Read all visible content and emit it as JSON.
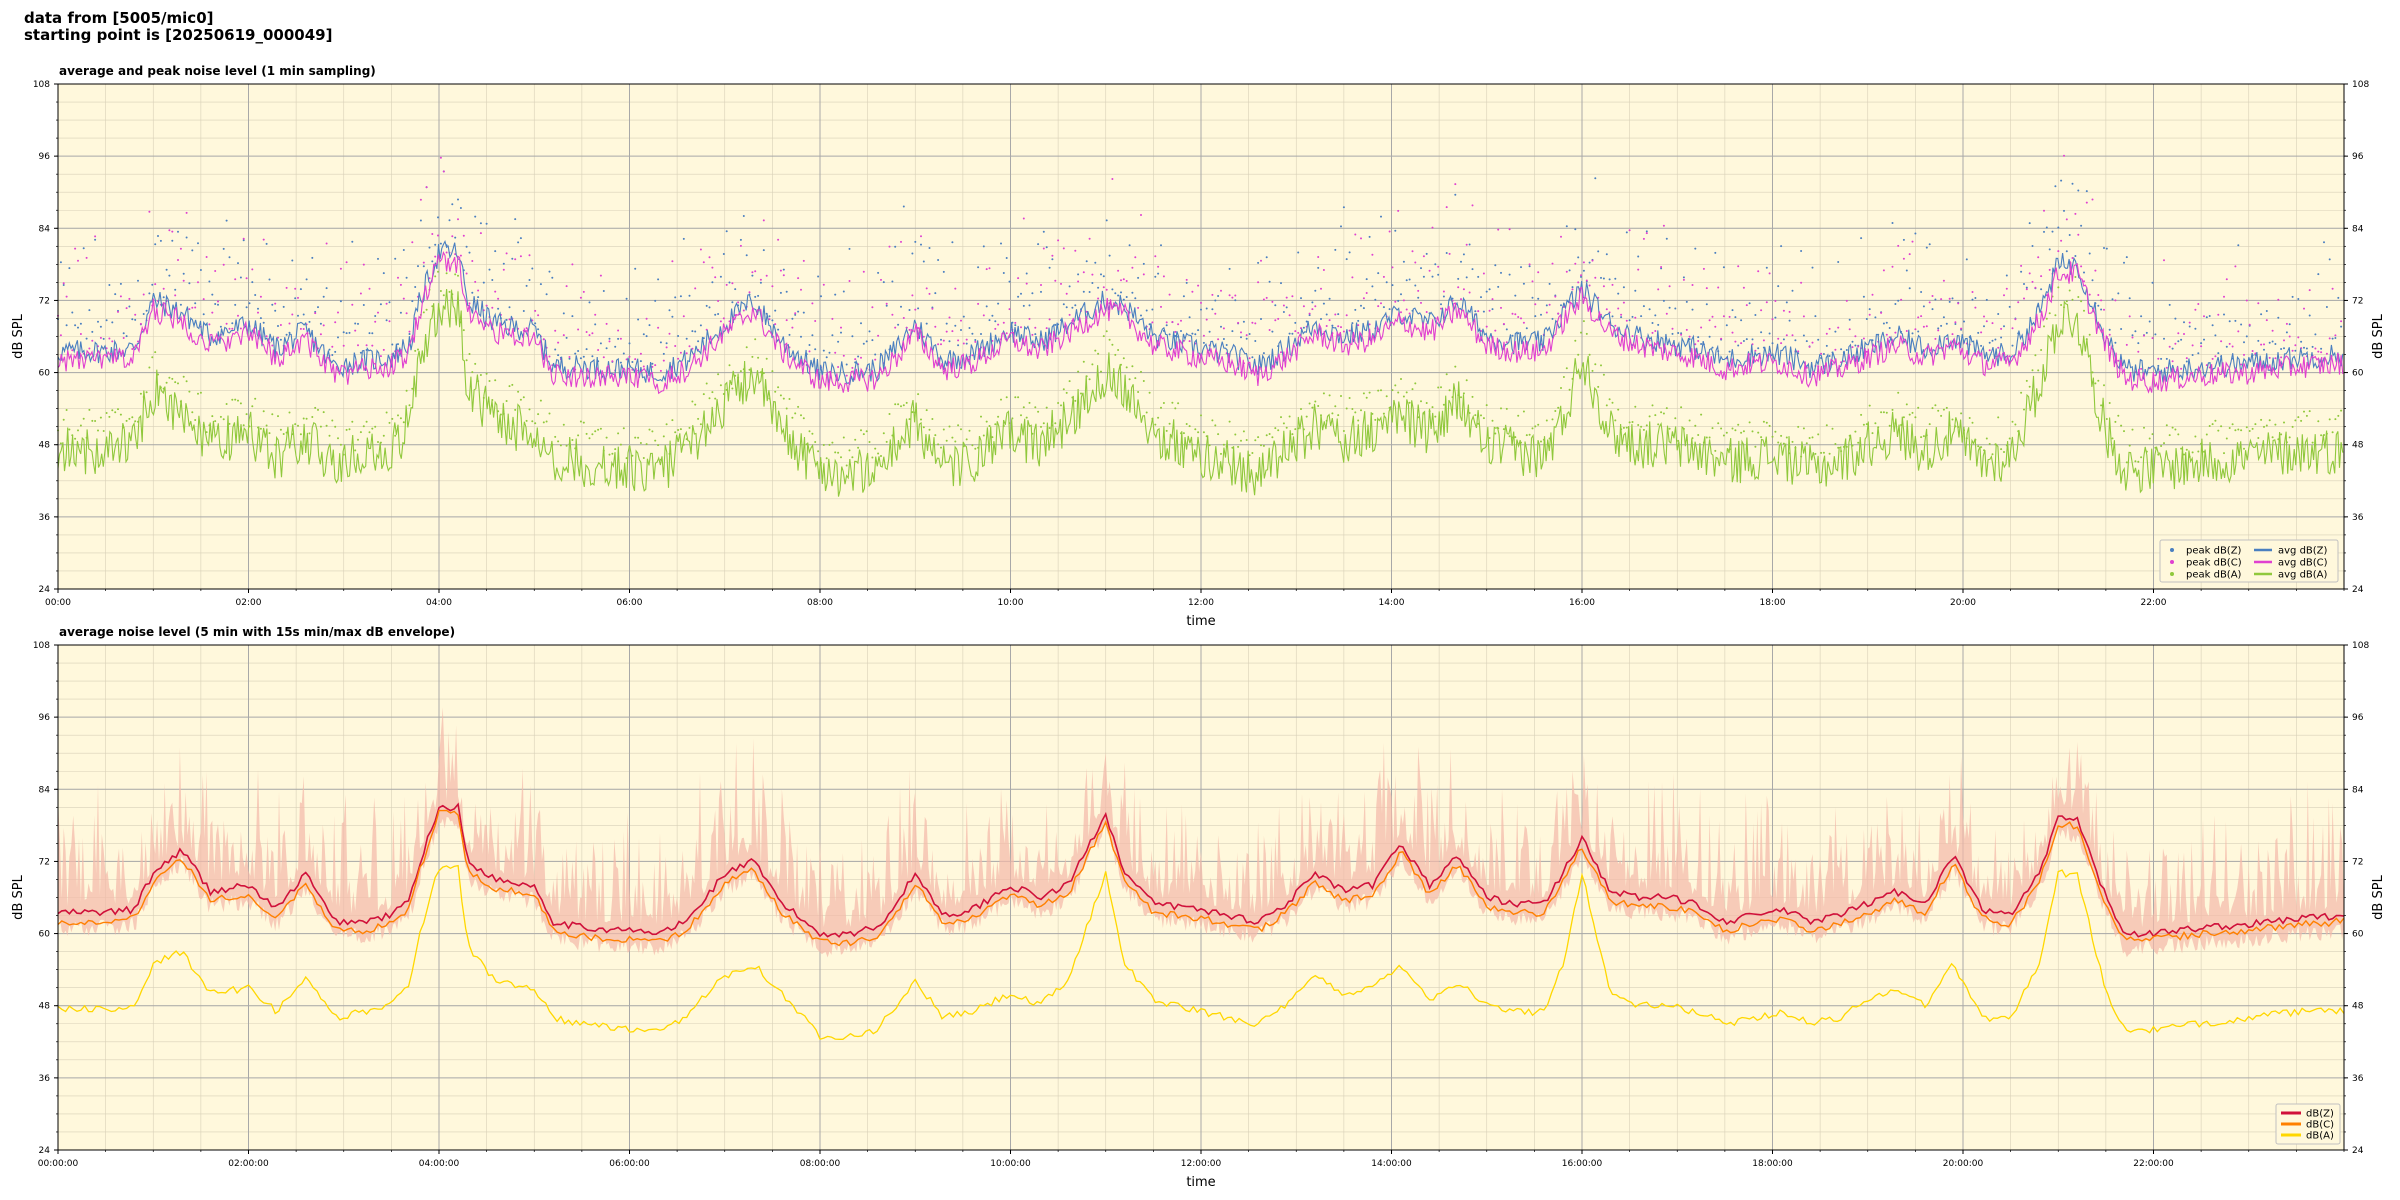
{
  "header": {
    "line1": "data from [5005/mic0]",
    "line2": "starting point is [20250619_000049]"
  },
  "colors": {
    "plot_bg": "#fff8dc",
    "z": "#4a7fc0",
    "c": "#e040d0",
    "a": "#90c83c",
    "b_z": "#d0103a",
    "b_c": "#ff8000",
    "b_a": "#ffd700",
    "envelope": "#f4b8a8"
  },
  "chart_data": [
    {
      "type": "line",
      "title": "average and peak noise level (1 min sampling)",
      "xlabel": "time",
      "ylabel": "dB SPL",
      "ylim": [
        24,
        108
      ],
      "yticks": [
        24,
        36,
        48,
        60,
        72,
        84,
        96,
        108
      ],
      "xlim_hours": [
        0,
        24
      ],
      "xtick_labels": [
        "00:00",
        "02:00",
        "04:00",
        "06:00",
        "08:00",
        "10:00",
        "12:00",
        "14:00",
        "16:00",
        "18:00",
        "20:00",
        "22:00"
      ],
      "grid": true,
      "legend_position": "bottom-right",
      "legend": [
        "peak dB(Z)",
        "peak dB(C)",
        "peak dB(A)",
        "avg dB(Z)",
        "avg dB(C)",
        "avg dB(A)"
      ],
      "x_hours": [
        0,
        0.5,
        0.8,
        1.0,
        1.3,
        1.6,
        2.0,
        2.3,
        2.6,
        2.9,
        3.2,
        3.5,
        3.7,
        3.8,
        4.0,
        4.2,
        4.3,
        4.6,
        5.0,
        5.2,
        5.5,
        6.0,
        6.3,
        6.6,
        6.8,
        7.0,
        7.3,
        7.6,
        8.0,
        8.3,
        8.6,
        8.8,
        9.0,
        9.3,
        9.6,
        10.0,
        10.3,
        10.6,
        11.0,
        11.2,
        11.5,
        12.0,
        12.3,
        12.6,
        12.9,
        13.2,
        13.5,
        13.8,
        14.1,
        14.4,
        14.7,
        15.0,
        15.3,
        15.6,
        15.8,
        16.0,
        16.3,
        16.6,
        16.9,
        17.2,
        17.5,
        17.8,
        18.1,
        18.4,
        18.7,
        19.0,
        19.3,
        19.6,
        19.9,
        20.2,
        20.5,
        20.8,
        21.0,
        21.2,
        21.5,
        21.7,
        22.0,
        22.5,
        23.0,
        23.5,
        24.0
      ],
      "series": [
        {
          "name": "avg dB(Z)",
          "values": [
            63.5,
            63.5,
            64,
            72,
            70,
            66,
            68,
            64,
            67,
            61,
            62,
            62.5,
            65,
            72,
            80,
            80,
            72,
            68,
            67,
            61,
            61,
            60.5,
            60,
            62,
            65,
            68,
            72,
            65,
            60,
            60,
            60.5,
            64,
            68,
            62,
            63,
            67,
            65,
            68,
            72,
            71,
            66,
            64,
            63,
            61,
            64,
            68,
            66,
            67,
            70,
            68,
            72,
            66,
            65,
            65,
            70,
            74,
            68,
            66,
            65,
            64,
            62,
            63,
            63,
            61,
            62,
            64,
            66,
            64,
            66,
            63,
            63,
            70,
            78,
            78,
            66,
            60.5,
            60,
            61,
            61.5,
            62.5,
            63
          ]
        },
        {
          "name": "avg dB(C)",
          "values": [
            62,
            62,
            62.5,
            70.5,
            68.5,
            64.5,
            66.5,
            62.5,
            65.5,
            59.5,
            60.5,
            61,
            63.5,
            70.5,
            78.5,
            78.5,
            70.5,
            66.5,
            65.5,
            59.5,
            59.5,
            59,
            58.5,
            60.5,
            63.5,
            66.5,
            70.5,
            63.5,
            58.5,
            58.5,
            59,
            62.5,
            66.5,
            60.5,
            61.5,
            65.5,
            63.5,
            66.5,
            70.5,
            69.5,
            64.5,
            62.5,
            61.5,
            59.5,
            62.5,
            66.5,
            64.5,
            65.5,
            68.5,
            66.5,
            70.5,
            64.5,
            63.5,
            63.5,
            68.5,
            72.5,
            66.5,
            64.5,
            63.5,
            62.5,
            60.5,
            61.5,
            61.5,
            59.5,
            60.5,
            62.5,
            64.5,
            62.5,
            64.5,
            61.5,
            61.5,
            68.5,
            76.5,
            76.5,
            64.5,
            59,
            58.5,
            59.5,
            60,
            61,
            61.5
          ]
        },
        {
          "name": "avg dB(A)",
          "values": [
            47,
            47,
            49,
            57,
            53,
            48,
            50,
            46,
            49,
            45,
            46,
            47,
            52,
            63,
            71,
            71,
            58,
            52,
            50,
            46,
            45,
            44,
            43.5,
            47,
            51,
            55,
            60,
            50,
            44,
            43,
            44,
            48,
            52,
            44,
            45,
            50,
            48,
            52,
            60,
            58,
            50,
            46,
            45,
            43,
            47,
            51,
            49,
            50,
            53,
            50,
            55,
            48,
            47,
            46,
            52,
            63,
            50,
            48,
            48,
            47,
            45,
            46,
            46,
            44,
            45,
            48,
            50,
            47,
            50,
            45,
            46,
            58,
            69,
            69,
            50,
            44,
            44,
            45,
            46,
            47,
            47
          ]
        }
      ]
    },
    {
      "type": "line",
      "title": "average noise level (5 min with 15s min/max dB envelope)",
      "xlabel": "time",
      "ylabel": "dB SPL",
      "ylim": [
        24,
        108
      ],
      "yticks": [
        24,
        36,
        48,
        60,
        72,
        84,
        96,
        108
      ],
      "xlim_hours": [
        0,
        24
      ],
      "xtick_labels": [
        "00:00:00",
        "02:00:00",
        "04:00:00",
        "06:00:00",
        "08:00:00",
        "10:00:00",
        "12:00:00",
        "14:00:00",
        "16:00:00",
        "18:00:00",
        "20:00:00",
        "22:00:00"
      ],
      "grid": true,
      "legend_position": "bottom-right",
      "legend": [
        "dB(Z)",
        "dB(C)",
        "dB(A)"
      ],
      "x_hours": [
        0,
        0.5,
        0.8,
        1.0,
        1.3,
        1.6,
        2.0,
        2.3,
        2.6,
        2.9,
        3.2,
        3.5,
        3.7,
        3.8,
        4.0,
        4.2,
        4.3,
        4.6,
        5.0,
        5.2,
        5.5,
        6.0,
        6.3,
        6.6,
        6.8,
        7.0,
        7.3,
        7.6,
        8.0,
        8.3,
        8.6,
        8.8,
        9.0,
        9.3,
        9.6,
        10.0,
        10.3,
        10.6,
        11.0,
        11.2,
        11.5,
        12.0,
        12.3,
        12.6,
        12.9,
        13.2,
        13.5,
        13.8,
        14.1,
        14.4,
        14.7,
        15.0,
        15.3,
        15.6,
        15.8,
        16.0,
        16.3,
        16.6,
        16.9,
        17.2,
        17.5,
        17.8,
        18.1,
        18.4,
        18.7,
        19.0,
        19.3,
        19.6,
        19.9,
        20.2,
        20.5,
        20.8,
        21.0,
        21.2,
        21.5,
        21.7,
        22.0,
        22.5,
        23.0,
        23.5,
        24.0
      ],
      "series": [
        {
          "name": "dB(Z)",
          "values": [
            63.5,
            63.5,
            64,
            70,
            74,
            67,
            68,
            64,
            70,
            62,
            62,
            63,
            66,
            72,
            81,
            81,
            72,
            69,
            68,
            62,
            61,
            60.5,
            60,
            62,
            66,
            70,
            72,
            65,
            60,
            60,
            61,
            65,
            70,
            63,
            64,
            68,
            66,
            68,
            80,
            70,
            65,
            64,
            63,
            62,
            65,
            70,
            67,
            68,
            75,
            68,
            73,
            66,
            65,
            65,
            70,
            76,
            67,
            66,
            66,
            65,
            62,
            63,
            64,
            62,
            63,
            65,
            67,
            65,
            73,
            64,
            63,
            70,
            79,
            79,
            66,
            60,
            60,
            61,
            61.5,
            62.5,
            63
          ]
        },
        {
          "name": "dB(C)",
          "values": [
            62,
            62,
            62.5,
            68.5,
            72.5,
            65.5,
            66.5,
            62.5,
            68.5,
            60.5,
            60.5,
            61.5,
            64.5,
            70.5,
            80,
            80,
            70.5,
            67.5,
            66.5,
            60.5,
            59.5,
            59,
            58.5,
            60.5,
            64.5,
            68.5,
            70.5,
            63.5,
            58.5,
            58.5,
            59.5,
            63.5,
            68.5,
            61.5,
            62.5,
            66.5,
            64.5,
            66.5,
            78.5,
            68.5,
            63.5,
            62.5,
            61.5,
            60.5,
            63.5,
            68.5,
            65.5,
            66.5,
            73.5,
            66.5,
            71.5,
            64.5,
            63.5,
            63.5,
            68.5,
            74.5,
            65.5,
            64.5,
            64.5,
            63.5,
            60.5,
            61.5,
            62.5,
            60.5,
            61.5,
            63.5,
            65.5,
            63.5,
            71.5,
            62.5,
            61.5,
            68.5,
            78,
            78,
            64.5,
            59,
            59,
            60,
            60.5,
            61.5,
            62
          ]
        },
        {
          "name": "dB(A)",
          "values": [
            47.5,
            47.5,
            48,
            55,
            57,
            50,
            51,
            47,
            53,
            46,
            47,
            48,
            52,
            60,
            71,
            71,
            58,
            52,
            51,
            46,
            45,
            44,
            43.5,
            46,
            50,
            53,
            55,
            50,
            43,
            43,
            44,
            48,
            52,
            46,
            47,
            50,
            48,
            52,
            70,
            55,
            49,
            47,
            46,
            45,
            48,
            53,
            50,
            51,
            55,
            49,
            52,
            48,
            47,
            47,
            55,
            70,
            50,
            48,
            48,
            47,
            45,
            46,
            47,
            45,
            46,
            49,
            51,
            48,
            55,
            46,
            46,
            55,
            70,
            70,
            50,
            44,
            44,
            45,
            46,
            47,
            47
          ]
        }
      ]
    }
  ]
}
